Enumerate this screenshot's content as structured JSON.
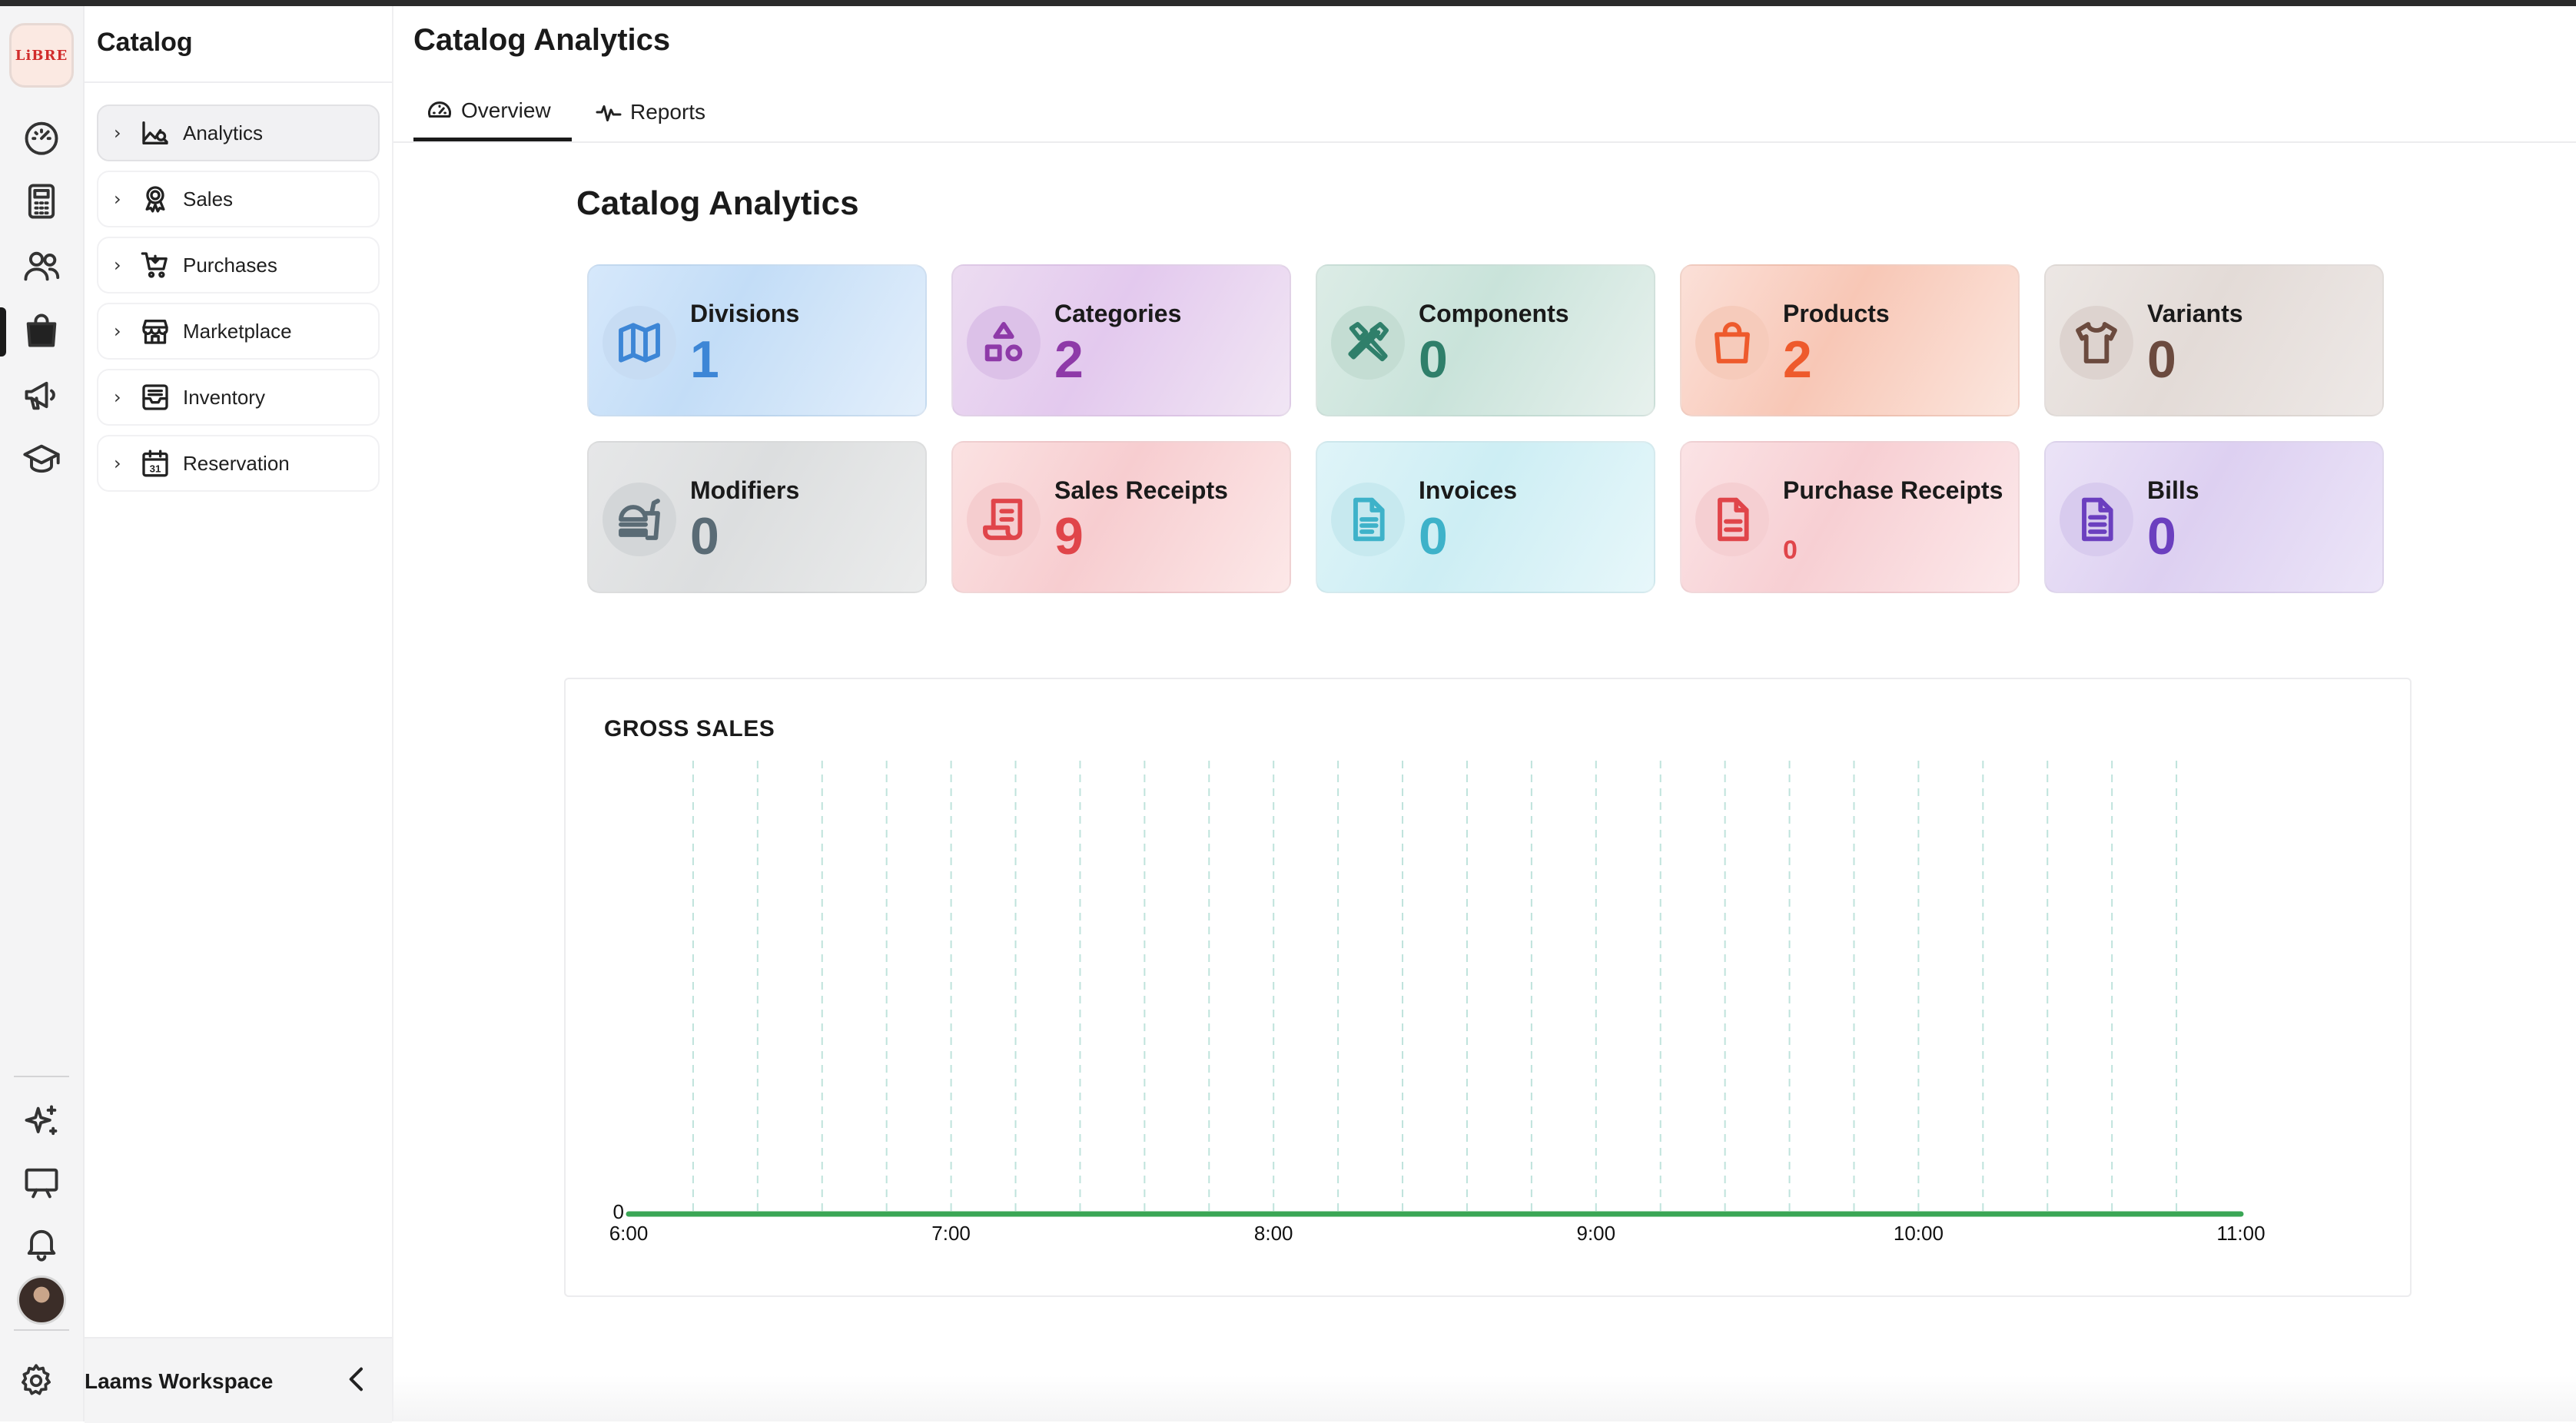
{
  "app": {
    "logo_text": "LiBRE",
    "section_title": "Catalog",
    "workspace_name": "Laams Workspace"
  },
  "rail": {
    "items": [
      "dashboard-icon",
      "calculator-icon",
      "users-icon",
      "shopping-bag-icon",
      "megaphone-icon",
      "graduation-cap-icon"
    ],
    "active": "shopping-bag-icon",
    "bottom_items": [
      "sparkles-icon",
      "presentation-icon",
      "bell-icon"
    ]
  },
  "sidebar": {
    "items": [
      {
        "label": "Analytics",
        "icon": "analytics-icon",
        "active": true
      },
      {
        "label": "Sales",
        "icon": "award-icon"
      },
      {
        "label": "Purchases",
        "icon": "cart-icon"
      },
      {
        "label": "Marketplace",
        "icon": "store-icon"
      },
      {
        "label": "Inventory",
        "icon": "inbox-icon"
      },
      {
        "label": "Reservation",
        "icon": "calendar-icon"
      }
    ]
  },
  "header": {
    "title": "Catalog Analytics",
    "tabs": [
      {
        "label": "Overview",
        "icon": "gauge-icon",
        "active": true
      },
      {
        "label": "Reports",
        "icon": "activity-icon"
      }
    ]
  },
  "content": {
    "heading": "Catalog Analytics",
    "cards": [
      {
        "label": "Divisions",
        "value": "1",
        "icon": "map-icon",
        "color": "#3d86d6"
      },
      {
        "label": "Categories",
        "value": "2",
        "icon": "shapes-icon",
        "color": "#8e3aa8"
      },
      {
        "label": "Components",
        "value": "0",
        "icon": "tools-icon",
        "color": "#2f7f6a"
      },
      {
        "label": "Products",
        "value": "2",
        "icon": "bag-icon",
        "color": "#ee5a2c"
      },
      {
        "label": "Variants",
        "value": "0",
        "icon": "shirt-icon",
        "color": "#6b4a3e"
      },
      {
        "label": "Modifiers",
        "value": "0",
        "icon": "burger-icon",
        "color": "#5a6b75"
      },
      {
        "label": "Sales Receipts",
        "value": "9",
        "icon": "receipt-icon",
        "color": "#e0454a"
      },
      {
        "label": "Invoices",
        "value": "0",
        "icon": "file-icon",
        "color": "#3eb2c9"
      },
      {
        "label": "Purchase Receipts",
        "value": "0",
        "icon": "file-text-icon",
        "color": "#e0454a"
      },
      {
        "label": "Bills",
        "value": "0",
        "icon": "file-lines-icon",
        "color": "#6b3fbf"
      }
    ]
  },
  "chart_data": {
    "type": "line",
    "title": "GROSS SALES",
    "x": [
      "6:00",
      "6:12",
      "6:24",
      "6:36",
      "6:48",
      "7:00",
      "7:12",
      "7:24",
      "7:36",
      "7:48",
      "8:00",
      "8:12",
      "8:24",
      "8:36",
      "8:48",
      "9:00",
      "9:12",
      "9:24",
      "9:36",
      "9:48",
      "10:00",
      "10:12",
      "10:24",
      "10:36",
      "10:48",
      "11:00"
    ],
    "x_tick_labels": [
      "6:00",
      "7:00",
      "8:00",
      "9:00",
      "10:00",
      "11:00"
    ],
    "series": [
      {
        "values": [
          0,
          0,
          0,
          0,
          0,
          0,
          0,
          0,
          0,
          0,
          0,
          0,
          0,
          0,
          0,
          0,
          0,
          0,
          0,
          0,
          0,
          0,
          0,
          0,
          0,
          0
        ],
        "color": "#3aa655"
      }
    ],
    "y_tick_labels": [
      "0"
    ],
    "ylim": [
      0,
      1
    ],
    "grid": "vertical dashed",
    "grid_color": "#bfe3dc"
  }
}
